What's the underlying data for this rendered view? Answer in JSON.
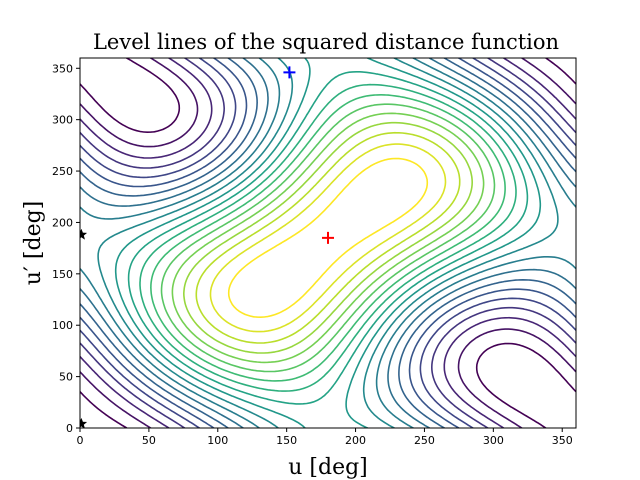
{
  "chart_data": {
    "type": "contour",
    "title": "Level lines of the squared distance function",
    "xlabel": "u [deg]",
    "ylabel": "u′ [deg]",
    "xlim": [
      0,
      360
    ],
    "ylim": [
      0,
      360
    ],
    "xticks": [
      0,
      50,
      100,
      150,
      200,
      250,
      300,
      350
    ],
    "yticks": [
      0,
      50,
      100,
      150,
      200,
      250,
      300,
      350
    ],
    "colormap": "viridis",
    "level_count": 20,
    "max_point": {
      "u": 180,
      "u_prime": 185,
      "color": "#ff0000",
      "symbol": "+"
    },
    "saddle_point": {
      "u": 152,
      "u_prime": 346,
      "color": "#0000ff",
      "symbol": "+"
    },
    "min_points": [
      {
        "u": 1,
        "u_prime": 188,
        "color": "#000000",
        "symbol": "star"
      },
      {
        "u": 1,
        "u_prime": 4,
        "color": "#000000",
        "symbol": "star"
      }
    ]
  }
}
